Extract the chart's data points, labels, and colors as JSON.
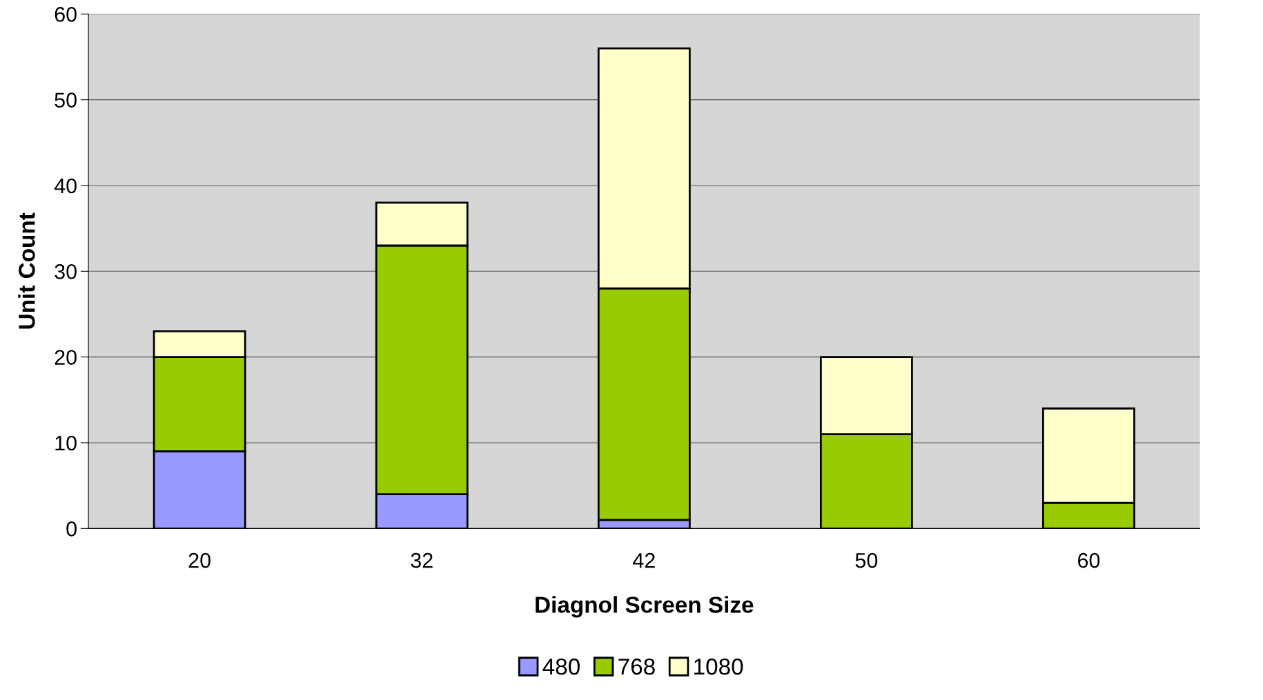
{
  "chart_data": {
    "type": "bar",
    "stacked": true,
    "xlabel": "Diagnol Screen Size",
    "ylabel": "Unit Count",
    "categories": [
      "20",
      "32",
      "42",
      "50",
      "60"
    ],
    "series": [
      {
        "name": "480",
        "color": "#9999ff",
        "values": [
          9,
          4,
          1,
          0,
          0
        ]
      },
      {
        "name": "768",
        "color": "#99cc00",
        "values": [
          11,
          29,
          27,
          11,
          3
        ]
      },
      {
        "name": "1080",
        "color": "#ffffcc",
        "values": [
          3,
          5,
          28,
          9,
          11
        ]
      }
    ],
    "ylim": [
      0,
      60
    ],
    "yticks": [
      0,
      10,
      20,
      30,
      40,
      50,
      60
    ],
    "grid": "y",
    "legend": "bottom"
  }
}
